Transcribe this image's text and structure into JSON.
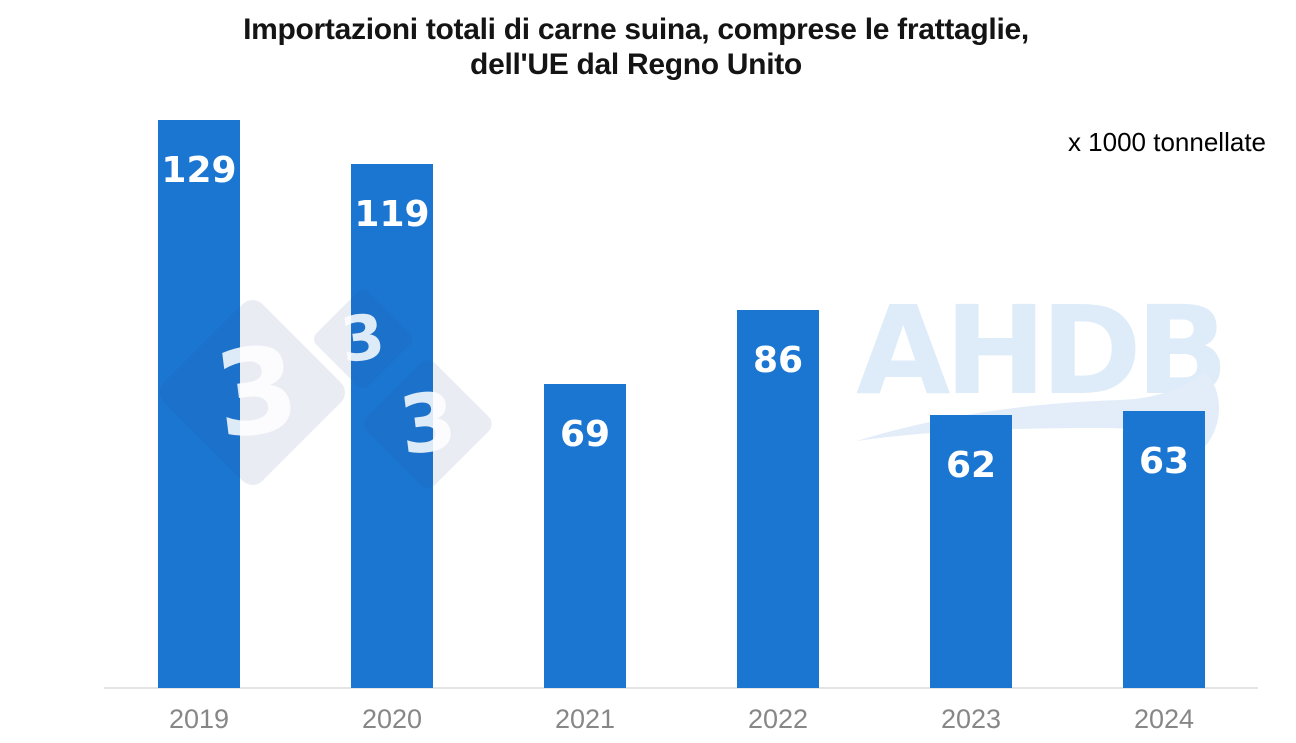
{
  "title": {
    "full": "Importazioni totali di carne suina, comprese le frattaglie, dell'UE dal Regno Unito",
    "line1": "Importazioni totali di carne suina, comprese le frattaglie,",
    "line2": "dell'UE dal Regno Unito"
  },
  "unit_label": "x 1000 tonnellate",
  "watermarks": {
    "ahdb_text": "AHDB",
    "diamond_glyph": "3"
  },
  "colors": {
    "bar": "#1b76d2",
    "bar_value_label": "#ffffff",
    "title_text": "#141414",
    "unit_label": "#000000",
    "axis_line": "#e4e4e4",
    "year_label": "#878787",
    "watermark_diamond": "rgba(36,73,134,0.10)",
    "watermark_glyph": "rgba(255,255,255,0.85)",
    "watermark_ahdb": "#deebf8",
    "watermark_swoosh": "#e2edf9"
  },
  "chart_data": {
    "type": "bar",
    "title": "Importazioni totali di carne suina, comprese le frattaglie, dell'UE dal Regno Unito",
    "categories": [
      "2019",
      "2020",
      "2021",
      "2022",
      "2023",
      "2024"
    ],
    "values": [
      129,
      119,
      69,
      86,
      62,
      63
    ],
    "xlabel": "",
    "ylabel": "x 1000 tonnellate",
    "ylim": [
      0,
      145
    ],
    "grid": false,
    "legend": false,
    "value_labels": "inside-top-white"
  }
}
